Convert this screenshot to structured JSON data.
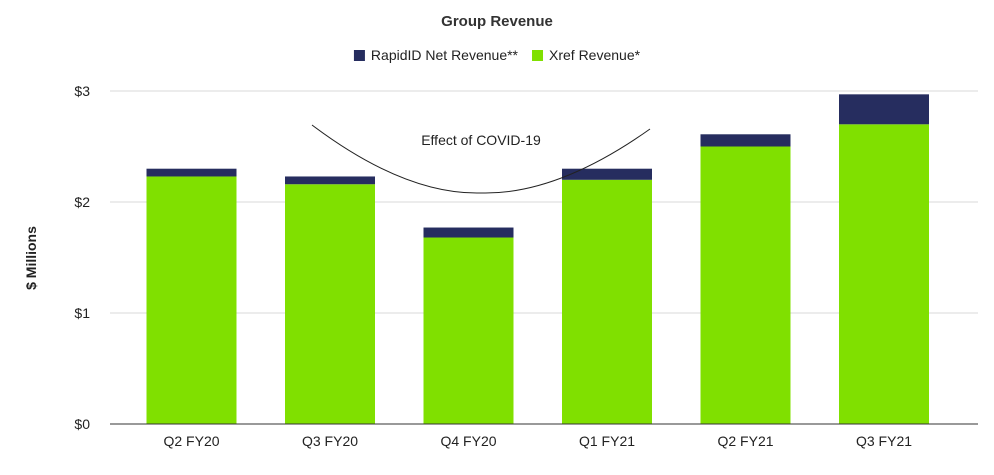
{
  "chart_data": {
    "type": "bar",
    "stacked": true,
    "title": "Group Revenue",
    "xlabel": "",
    "ylabel": "$ Millions",
    "categories": [
      "Q2 FY20",
      "Q3 FY20",
      "Q4 FY20",
      "Q1 FY21",
      "Q2 FY21",
      "Q3 FY21"
    ],
    "series": [
      {
        "name": "Xref Revenue*",
        "color": "#80e000",
        "values": [
          2.23,
          2.16,
          1.68,
          2.2,
          2.5,
          2.7
        ]
      },
      {
        "name": "RapidID Net Revenue**",
        "color": "#262d5f",
        "values": [
          0.07,
          0.07,
          0.09,
          0.1,
          0.11,
          0.27
        ]
      }
    ],
    "legend_order": [
      "RapidID Net Revenue**",
      "Xref Revenue*"
    ],
    "legend_position": "top-center",
    "ylim": [
      0,
      3
    ],
    "yticks": [
      0,
      1,
      2,
      3
    ],
    "ytick_labels": [
      "$0",
      "$1",
      "$2",
      "$3"
    ],
    "grid": true,
    "annotation": {
      "text": "Effect of COVID-19",
      "span_categories": [
        "Q3 FY20",
        "Q1 FY21"
      ]
    }
  }
}
